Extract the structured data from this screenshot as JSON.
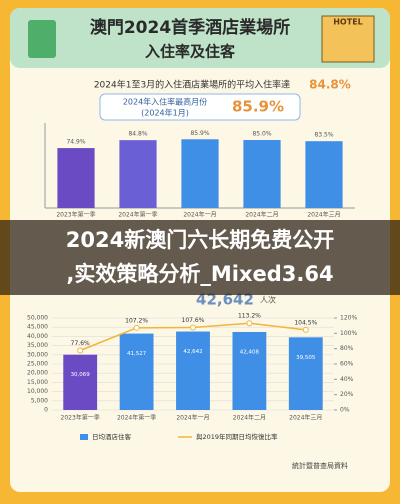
{
  "header": {
    "title_line1": "澳門2024首季酒店業場所",
    "title_line2": "入住率及住客",
    "icon_label": "HOTEL"
  },
  "summary": {
    "text": "2024年1至3月的入住酒店業場所的平均入住率達",
    "value": "84.8%"
  },
  "highlight": {
    "label_line1": "2024年入住率最高月份",
    "label_line2": "(2024年1月)",
    "value": "85.9%"
  },
  "banner": {
    "line1": "2024新澳门六长期免费公开",
    "line2": ",实效策略分析_Mixed3.64"
  },
  "guest_note": {
    "value": "42,642",
    "unit": "人次"
  },
  "source": "統計暨普查局資料",
  "chart_data": [
    {
      "type": "bar",
      "categories": [
        "2023年第一季",
        "2024年第一季",
        "2024年一月",
        "2024年二月",
        "2024年三月"
      ],
      "values": [
        74.9,
        84.8,
        85.9,
        85.0,
        83.5
      ],
      "value_labels": [
        "74.9%",
        "84.8%",
        "85.9%",
        "85.0%",
        "83.5%"
      ],
      "colors": [
        "#6b4bc4",
        "#6b5fd6",
        "#3f8fe6",
        "#3f8fe6",
        "#3f8fe6"
      ],
      "ylim": [
        0,
        100
      ]
    },
    {
      "type": "bar_line",
      "categories": [
        "2023年第一季",
        "2024年第一季",
        "2024年一月",
        "2024年二月",
        "2024年三月"
      ],
      "series": [
        {
          "name": "日均酒店住客",
          "type": "bar",
          "colors": [
            "#6b4bc4",
            "#3f8fe6",
            "#3f8fe6",
            "#3f8fe6",
            "#3f8fe6"
          ],
          "values": [
            30069,
            41527,
            42642,
            42408,
            39505
          ],
          "value_labels": [
            "30,069",
            "41,527",
            "42,642",
            "42,408",
            "39,505"
          ]
        },
        {
          "name": "與2019年同期日均恢復比率",
          "type": "line",
          "axis": "y2",
          "color": "#f0b53a",
          "values": [
            77.6,
            107.2,
            107.6,
            113.2,
            104.5
          ],
          "value_labels": [
            "77.6%",
            "107.2%",
            "107.6%",
            "113.2%",
            "104.5%"
          ]
        }
      ],
      "ylim": [
        0,
        50000
      ],
      "yticks": [
        0,
        {
          "value": 5000,
          "label": "5,000"
        },
        {
          "value": 10000,
          "label": "10,000"
        },
        {
          "value": 15000,
          "label": "15,000"
        },
        {
          "value": 20000,
          "label": "20,000"
        },
        {
          "value": 25000,
          "label": "25,000"
        },
        {
          "value": 30000,
          "label": "30,000"
        },
        {
          "value": 35000,
          "label": "35,000"
        },
        {
          "value": 40000,
          "label": "40,000"
        },
        {
          "value": 45000,
          "label": "45,000"
        },
        {
          "value": 50000,
          "label": "50,000"
        }
      ],
      "y2lim": [
        0,
        120
      ],
      "y2ticks": [
        {
          "value": 0,
          "label": "0%"
        },
        {
          "value": 20,
          "label": "20%"
        },
        {
          "value": 40,
          "label": "40%"
        },
        {
          "value": 60,
          "label": "60%"
        },
        {
          "value": 80,
          "label": "80%"
        },
        {
          "value": 100,
          "label": "100%"
        },
        {
          "value": 120,
          "label": "120%"
        }
      ]
    }
  ]
}
